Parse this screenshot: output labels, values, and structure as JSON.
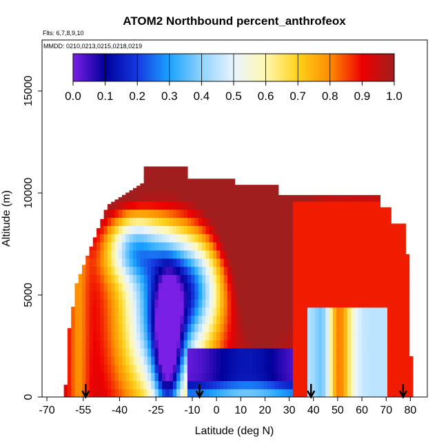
{
  "chart_data": {
    "type": "heatmap",
    "title": "ATOM2 Northbound percent_anthrofeox",
    "notes": [
      "Flts: 6,7,8,9,10",
      "MMDD: 0210,0213,0215,0218,0219"
    ],
    "xlabel": "Latitude (deg N)",
    "ylabel": "Altitude (m)",
    "xlim": [
      -72,
      87
    ],
    "ylim": [
      0,
      17500
    ],
    "x_ticks": [
      -70,
      -55,
      -40,
      -25,
      -10,
      0,
      10,
      20,
      30,
      40,
      50,
      60,
      70,
      80
    ],
    "y_ticks": [
      0,
      5000,
      10000,
      15000
    ],
    "colorbar": {
      "range": [
        0.0,
        1.0
      ],
      "ticks": [
        "0.0",
        "0.1",
        "0.2",
        "0.3",
        "0.4",
        "0.5",
        "0.6",
        "0.7",
        "0.8",
        "0.9",
        "1.0"
      ],
      "placement": "top inside plot"
    },
    "grid": false,
    "flight_markers_lat": [
      -54,
      -7,
      39,
      77
    ]
  }
}
